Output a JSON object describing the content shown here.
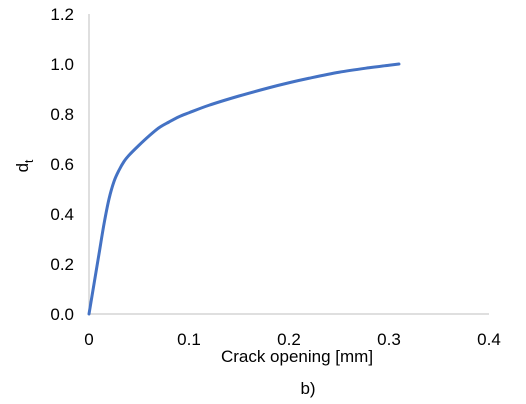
{
  "chart_data": {
    "type": "line",
    "xlabel": "Crack opening [mm]",
    "ylabel": "d",
    "ylabel_subscript": "t",
    "caption": "b)",
    "xlim": [
      0,
      0.4
    ],
    "ylim": [
      0,
      1.2
    ],
    "x_ticks": [
      "0",
      "0.1",
      "0.2",
      "0.3",
      "0.4"
    ],
    "y_ticks": [
      "0.0",
      "0.2",
      "0.4",
      "0.6",
      "0.8",
      "1.0",
      "1.2"
    ],
    "grid": false,
    "legend": "none",
    "series": [
      {
        "color": "#4472C4",
        "x": [
          0,
          0.005,
          0.01,
          0.015,
          0.02,
          0.025,
          0.03,
          0.035,
          0.04,
          0.05,
          0.06,
          0.07,
          0.08,
          0.09,
          0.1,
          0.12,
          0.15,
          0.18,
          0.2,
          0.22,
          0.25,
          0.28,
          0.3,
          0.31
        ],
        "y": [
          0,
          0.12,
          0.24,
          0.36,
          0.46,
          0.53,
          0.575,
          0.61,
          0.635,
          0.675,
          0.712,
          0.745,
          0.768,
          0.789,
          0.805,
          0.835,
          0.872,
          0.905,
          0.925,
          0.943,
          0.967,
          0.985,
          0.995,
          1.0
        ]
      }
    ]
  }
}
